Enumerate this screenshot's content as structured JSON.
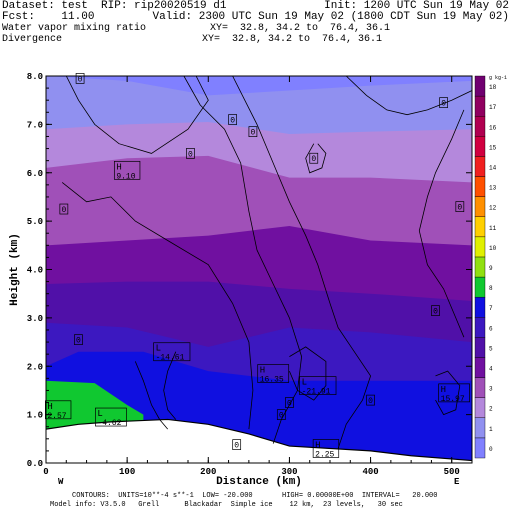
{
  "header": {
    "line1_left": "Dataset: test  RIP: rip20020519 d1",
    "line1_right": "Init: 1200 UTC Sun 19 May 02",
    "line2_left": "Fcst:    11.00",
    "line2_right": "Valid: 2300 UTC Sun 19 May 02 (1800 CDT Sun 19 May 02)",
    "line3_left": "Water vapor mixing ratio",
    "line3_right": "XY=  32.8, 34.2 to  76.4, 36.1",
    "line4_left": "Divergence",
    "line4_right": "XY=  32.8, 34.2 to  76.4, 36.1"
  },
  "footer": {
    "line1": "CONTOURS:  UNITS=10**-4 s**-1  LOW= -20.000       HIGH= 0.00000E+00  INTERVAL=   20.000",
    "line2": "Model info: V3.5.0   Grell      Blackadar  Simple ice    12 km,  23 levels,   30 sec"
  },
  "chart_data": {
    "type": "heatmap",
    "title": "Water vapor mixing ratio",
    "xlabel": "Distance (km)",
    "ylabel": "Height (km)",
    "xlim": [
      0,
      525
    ],
    "ylim": [
      0,
      8
    ],
    "x_ticks": [
      "0",
      "100",
      "200",
      "300",
      "400",
      "500"
    ],
    "y_ticks": [
      "0.0",
      "1.0",
      "2.0",
      "3.0",
      "4.0",
      "5.0",
      "6.0",
      "7.0",
      "8.0"
    ],
    "x_end_labels": {
      "left": "W",
      "right": "E"
    },
    "colorbar": {
      "unit": "g kg-1",
      "levels": [
        {
          "v": 0,
          "color": "#8080ff"
        },
        {
          "v": 1,
          "color": "#9090f0"
        },
        {
          "v": 2,
          "color": "#b488dc"
        },
        {
          "v": 3,
          "color": "#a050b8"
        },
        {
          "v": 4,
          "color": "#7010a0"
        },
        {
          "v": 5,
          "color": "#5010a8"
        },
        {
          "v": 6,
          "color": "#3c18c0"
        },
        {
          "v": 7,
          "color": "#1010e0"
        },
        {
          "v": 8,
          "color": "#10c830"
        },
        {
          "v": 9,
          "color": "#90e010"
        },
        {
          "v": 10,
          "color": "#e0f000"
        },
        {
          "v": 11,
          "color": "#ffd000"
        },
        {
          "v": 12,
          "color": "#ff9000"
        },
        {
          "v": 13,
          "color": "#ff5000"
        },
        {
          "v": 14,
          "color": "#f02020"
        },
        {
          "v": 15,
          "color": "#d00040"
        },
        {
          "v": 16,
          "color": "#b00050"
        },
        {
          "v": 17,
          "color": "#900060"
        },
        {
          "v": 18,
          "color": "#700070"
        }
      ],
      "top_label": "g kg-1",
      "labels": [
        "0",
        "1",
        "2",
        "3",
        "4",
        "5",
        "6",
        "7",
        "8",
        "9",
        "10",
        "11",
        "12",
        "13",
        "14",
        "15",
        "16",
        "17",
        "18"
      ]
    },
    "moisture_bands": [
      {
        "level": 1,
        "top": [
          [
            0,
            8
          ],
          [
            100,
            7.9
          ],
          [
            200,
            7.6
          ],
          [
            300,
            7.7
          ],
          [
            400,
            7.8
          ],
          [
            525,
            7.9
          ]
        ]
      },
      {
        "level": 2,
        "top": [
          [
            0,
            6.9
          ],
          [
            100,
            7.0
          ],
          [
            200,
            7.05
          ],
          [
            300,
            6.8
          ],
          [
            400,
            6.85
          ],
          [
            525,
            6.9
          ]
        ]
      },
      {
        "level": 3,
        "top": [
          [
            0,
            6.1
          ],
          [
            100,
            6.3
          ],
          [
            200,
            6.35
          ],
          [
            300,
            5.9
          ],
          [
            400,
            5.9
          ],
          [
            525,
            5.8
          ]
        ]
      },
      {
        "level": 4,
        "top": [
          [
            0,
            4.5
          ],
          [
            100,
            4.6
          ],
          [
            200,
            4.7
          ],
          [
            300,
            4.9
          ],
          [
            400,
            4.6
          ],
          [
            525,
            4.5
          ]
        ]
      },
      {
        "level": 5,
        "top": [
          [
            0,
            3.7
          ],
          [
            100,
            3.75
          ],
          [
            200,
            3.75
          ],
          [
            300,
            3.6
          ],
          [
            400,
            3.5
          ],
          [
            525,
            3.35
          ]
        ]
      },
      {
        "level": 6,
        "top": [
          [
            0,
            2.9
          ],
          [
            100,
            2.8
          ],
          [
            200,
            2.4
          ],
          [
            300,
            2.8
          ],
          [
            400,
            2.7
          ],
          [
            525,
            2.5
          ]
        ]
      },
      {
        "level": 7,
        "top": [
          [
            0,
            2.0
          ],
          [
            40,
            2.3
          ],
          [
            120,
            2.3
          ],
          [
            200,
            1.9
          ],
          [
            300,
            1.7
          ],
          [
            400,
            1.7
          ],
          [
            525,
            1.7
          ]
        ]
      },
      {
        "level": 8,
        "top": [
          [
            0,
            1.7
          ],
          [
            60,
            1.65
          ],
          [
            100,
            1.2
          ],
          [
            120,
            1.0
          ],
          [
            120,
            0
          ],
          [
            0,
            0
          ]
        ]
      }
    ],
    "terrain_top": [
      [
        0,
        0.7
      ],
      [
        40,
        0.8
      ],
      [
        80,
        0.85
      ],
      [
        150,
        0.9
      ],
      [
        200,
        0.8
      ],
      [
        250,
        0.6
      ],
      [
        300,
        0.35
      ],
      [
        400,
        0.25
      ],
      [
        450,
        0.15
      ],
      [
        525,
        0.05
      ]
    ],
    "extrema": [
      {
        "type": "H",
        "value": "9.10",
        "x": 100,
        "y": 6.05
      },
      {
        "type": "L",
        "value": "-14.61",
        "x": 155,
        "y": 2.3
      },
      {
        "type": "H",
        "value": "16.35",
        "x": 280,
        "y": 1.85
      },
      {
        "type": "L",
        "value": "-21.91",
        "x": 335,
        "y": 1.6
      },
      {
        "type": "H",
        "value": "15.97",
        "x": 503,
        "y": 1.45
      },
      {
        "type": "H",
        "value": "2.57",
        "x": 15,
        "y": 1.1
      },
      {
        "type": "L",
        "value": "-4.62",
        "x": 80,
        "y": 0.95
      },
      {
        "type": "H",
        "value": "2.25",
        "x": 345,
        "y": 0.3
      }
    ],
    "zero_labels": [
      {
        "x": 42,
        "y": 7.95
      },
      {
        "x": 230,
        "y": 7.1
      },
      {
        "x": 255,
        "y": 6.85
      },
      {
        "x": 178,
        "y": 6.4
      },
      {
        "x": 330,
        "y": 6.3
      },
      {
        "x": 490,
        "y": 7.45
      },
      {
        "x": 22,
        "y": 5.25
      },
      {
        "x": 510,
        "y": 5.3
      },
      {
        "x": 480,
        "y": 3.15
      },
      {
        "x": 40,
        "y": 2.55
      },
      {
        "x": 290,
        "y": 1.0
      },
      {
        "x": 400,
        "y": 1.3
      },
      {
        "x": 300,
        "y": 1.25
      },
      {
        "x": 235,
        "y": 0.38
      }
    ],
    "contour_lines": [
      [
        [
          25,
          8
        ],
        [
          40,
          7.5
        ],
        [
          60,
          7.0
        ],
        [
          90,
          6.6
        ],
        [
          130,
          6.4
        ],
        [
          175,
          6.9
        ],
        [
          200,
          7.5
        ],
        [
          185,
          8
        ]
      ],
      [
        [
          230,
          8
        ],
        [
          245,
          7.5
        ],
        [
          260,
          7.0
        ],
        [
          280,
          6.2
        ],
        [
          300,
          5.4
        ],
        [
          320,
          4.7
        ],
        [
          335,
          4.1
        ],
        [
          350,
          3.3
        ],
        [
          360,
          2.8
        ],
        [
          380,
          2.3
        ],
        [
          400,
          1.8
        ],
        [
          390,
          1.3
        ],
        [
          370,
          0.8
        ],
        [
          360,
          0.3
        ]
      ],
      [
        [
          170,
          8
        ],
        [
          190,
          7.4
        ],
        [
          220,
          6.9
        ],
        [
          240,
          6.2
        ],
        [
          250,
          5.2
        ],
        [
          260,
          4.4
        ],
        [
          280,
          3.7
        ],
        [
          300,
          3.0
        ],
        [
          315,
          2.2
        ],
        [
          310,
          1.5
        ],
        [
          290,
          0.9
        ],
        [
          280,
          0.4
        ]
      ],
      [
        [
          20,
          5.8
        ],
        [
          50,
          5.4
        ],
        [
          80,
          5.5
        ],
        [
          110,
          5.0
        ],
        [
          150,
          4.6
        ],
        [
          200,
          4.1
        ],
        [
          230,
          3.3
        ],
        [
          250,
          2.5
        ],
        [
          255,
          1.5
        ],
        [
          250,
          0.7
        ]
      ],
      [
        [
          515,
          7.3
        ],
        [
          500,
          6.7
        ],
        [
          480,
          6.0
        ],
        [
          470,
          5.5
        ],
        [
          460,
          4.8
        ],
        [
          470,
          4.1
        ],
        [
          490,
          3.6
        ],
        [
          505,
          3.0
        ],
        [
          515,
          2.6
        ]
      ],
      [
        [
          330,
          6.6
        ],
        [
          320,
          6.3
        ],
        [
          325,
          6.0
        ],
        [
          340,
          6.1
        ],
        [
          345,
          6.4
        ],
        [
          335,
          6.6
        ]
      ],
      [
        [
          370,
          8
        ],
        [
          395,
          7.6
        ],
        [
          420,
          7.3
        ],
        [
          445,
          7.2
        ],
        [
          470,
          7.3
        ],
        [
          500,
          7.5
        ],
        [
          525,
          7.7
        ]
      ],
      [
        [
          110,
          2.1
        ],
        [
          120,
          1.7
        ],
        [
          130,
          1.2
        ],
        [
          140,
          0.9
        ],
        [
          150,
          0.7
        ]
      ],
      [
        [
          160,
          2.3
        ],
        [
          150,
          1.9
        ],
        [
          145,
          1.5
        ],
        [
          150,
          1.1
        ],
        [
          160,
          0.9
        ]
      ],
      [
        [
          300,
          2.2
        ],
        [
          320,
          2.4
        ],
        [
          345,
          2.1
        ],
        [
          345,
          1.6
        ],
        [
          330,
          1.3
        ],
        [
          310,
          1.5
        ],
        [
          300,
          1.9
        ]
      ],
      [
        [
          480,
          1.8
        ],
        [
          495,
          1.9
        ],
        [
          510,
          1.6
        ],
        [
          505,
          1.1
        ],
        [
          490,
          1.0
        ],
        [
          480,
          1.3
        ]
      ]
    ]
  }
}
